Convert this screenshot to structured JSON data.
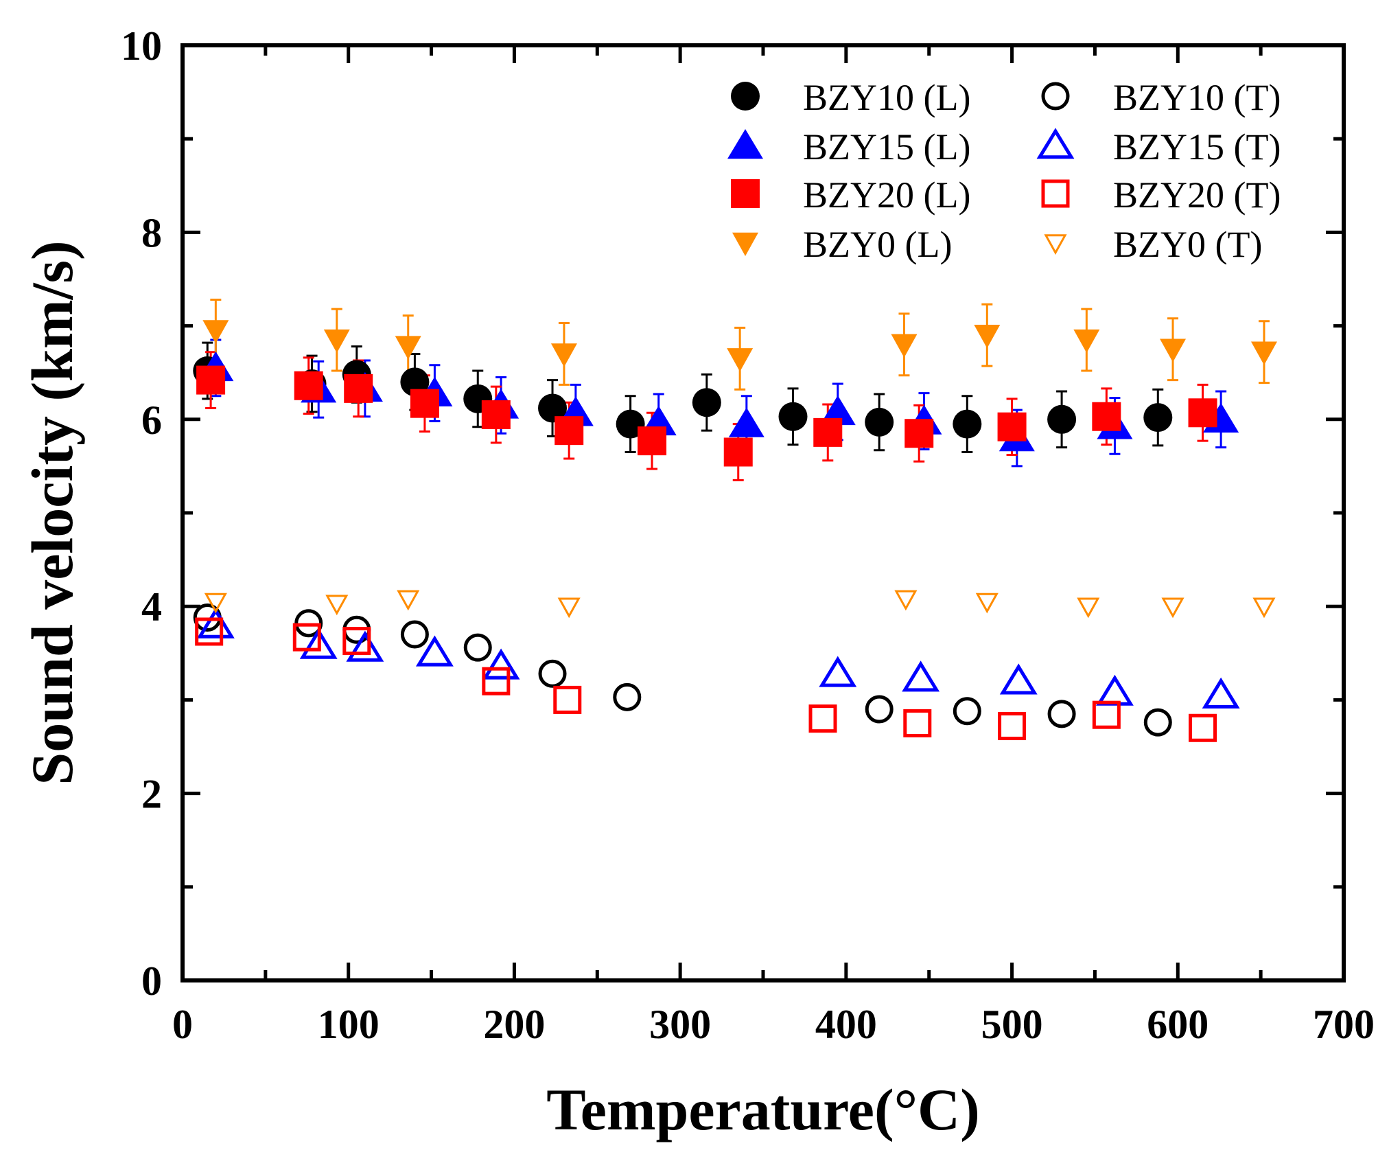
{
  "chart_data": {
    "type": "scatter",
    "title": "",
    "xlabel": "Temperature(°C)",
    "ylabel": "Sound velocity (km/s)",
    "xlim": [
      0,
      700
    ],
    "ylim": [
      0,
      10
    ],
    "xticks": [
      0,
      100,
      200,
      300,
      400,
      500,
      600,
      700
    ],
    "yticks": [
      0,
      2,
      4,
      6,
      8,
      10
    ],
    "xtick_labels": [
      "0",
      "100",
      "200",
      "300",
      "400",
      "500",
      "600",
      "700"
    ],
    "ytick_labels": [
      "0",
      "2",
      "4",
      "6",
      "8",
      "10"
    ],
    "grid": false,
    "legend_position": "top-right",
    "series": [
      {
        "name": "BZY10 (L)",
        "marker": "circle",
        "filled": true,
        "color": "#000000",
        "x": [
          15,
          78,
          105,
          140,
          178,
          223,
          270,
          316,
          368,
          420,
          473,
          530,
          588
        ],
        "y": [
          6.52,
          6.38,
          6.48,
          6.4,
          6.22,
          6.12,
          5.95,
          6.18,
          6.03,
          5.97,
          5.95,
          6.0,
          6.02
        ],
        "err": [
          0.3,
          0.3,
          0.3,
          0.3,
          0.3,
          0.3,
          0.3,
          0.3,
          0.3,
          0.3,
          0.3,
          0.3,
          0.3
        ]
      },
      {
        "name": "BZY15 (L)",
        "marker": "triangle-up",
        "filled": true,
        "color": "#0000ff",
        "x": [
          20,
          82,
          110,
          152,
          192,
          237,
          287,
          340,
          395,
          447,
          503,
          562,
          626
        ],
        "y": [
          6.55,
          6.32,
          6.33,
          6.28,
          6.15,
          6.07,
          5.97,
          5.95,
          6.08,
          5.98,
          5.8,
          5.93,
          6.0
        ],
        "err": [
          0.3,
          0.3,
          0.3,
          0.3,
          0.3,
          0.3,
          0.3,
          0.3,
          0.3,
          0.3,
          0.3,
          0.3,
          0.3
        ]
      },
      {
        "name": "BZY20 (L)",
        "marker": "square",
        "filled": true,
        "color": "#ff0000",
        "x": [
          17,
          76,
          106,
          146,
          189,
          233,
          283,
          335,
          389,
          444,
          500,
          557,
          615
        ],
        "y": [
          6.42,
          6.36,
          6.33,
          6.17,
          6.05,
          5.88,
          5.77,
          5.65,
          5.86,
          5.85,
          5.92,
          6.03,
          6.07
        ],
        "err": [
          0.3,
          0.3,
          0.3,
          0.3,
          0.3,
          0.3,
          0.3,
          0.3,
          0.3,
          0.3,
          0.3,
          0.3,
          0.3
        ]
      },
      {
        "name": "BZY0 (L)",
        "marker": "triangle-down",
        "filled": true,
        "color": "#ff8c00",
        "x": [
          20,
          93,
          136,
          230,
          336,
          435,
          485,
          545,
          597,
          652
        ],
        "y": [
          6.95,
          6.85,
          6.78,
          6.7,
          6.65,
          6.8,
          6.9,
          6.85,
          6.75,
          6.72
        ],
        "err": [
          0.33,
          0.33,
          0.33,
          0.33,
          0.33,
          0.33,
          0.33,
          0.33,
          0.33,
          0.33
        ]
      },
      {
        "name": "BZY10 (T)",
        "marker": "circle",
        "filled": false,
        "color": "#000000",
        "x": [
          15,
          76,
          105,
          140,
          178,
          223,
          268,
          420,
          473,
          530,
          588
        ],
        "y": [
          3.88,
          3.82,
          3.75,
          3.7,
          3.56,
          3.28,
          3.03,
          2.9,
          2.88,
          2.85,
          2.76
        ],
        "err": []
      },
      {
        "name": "BZY15 (T)",
        "marker": "triangle-up",
        "filled": false,
        "color": "#0000ff",
        "x": [
          20,
          82,
          110,
          152,
          192,
          395,
          445,
          504,
          562,
          626
        ],
        "y": [
          3.8,
          3.58,
          3.55,
          3.5,
          3.36,
          3.28,
          3.23,
          3.2,
          3.08,
          3.05
        ],
        "err": []
      },
      {
        "name": "BZY20 (T)",
        "marker": "square",
        "filled": false,
        "color": "#ff0000",
        "x": [
          16,
          75,
          105,
          189,
          232,
          386,
          443,
          500,
          557,
          615
        ],
        "y": [
          3.73,
          3.67,
          3.63,
          3.2,
          3.0,
          2.8,
          2.75,
          2.72,
          2.84,
          2.7
        ],
        "err": []
      },
      {
        "name": "BZY0 (T)",
        "marker": "triangle-down",
        "filled": false,
        "color": "#ff8c00",
        "x": [
          20,
          93,
          136,
          233,
          436,
          485,
          546,
          597,
          652
        ],
        "y": [
          4.05,
          4.03,
          4.08,
          4.0,
          4.08,
          4.05,
          4.0,
          4.0,
          4.0
        ],
        "err": []
      }
    ]
  }
}
